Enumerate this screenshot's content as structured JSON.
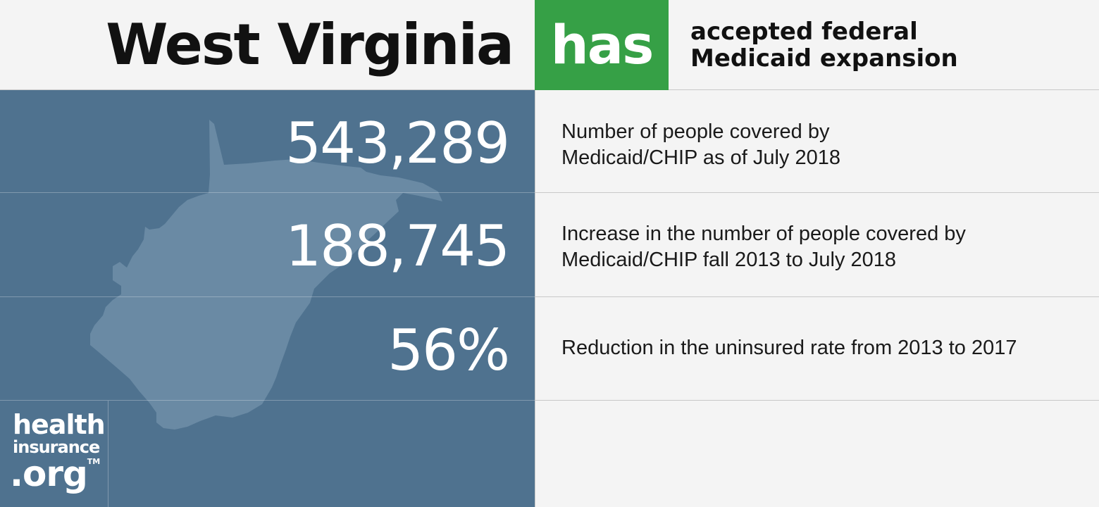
{
  "header": {
    "state_name": "West Virginia",
    "status": "has",
    "status_color": "#36a046",
    "description_line1": "accepted federal",
    "description_line2": "Medicaid expansion"
  },
  "stats": [
    {
      "value": "543,289",
      "label_line1": "Number of people covered by",
      "label_line2": "Medicaid/CHIP as of July 2018"
    },
    {
      "value": "188,745",
      "label_line1": "Increase in the number of people covered by",
      "label_line2": "Medicaid/CHIP fall 2013 to July 2018"
    },
    {
      "value": "56%",
      "label_line1": "Reduction in the uninsured rate from 2013 to 2017",
      "label_line2": ""
    }
  ],
  "logo": {
    "line1": "health",
    "line2": "insurance",
    "line3": ".org",
    "trademark": "TM"
  },
  "colors": {
    "panel": "#4f728f",
    "map": "#6a8aa4",
    "background": "#f4f4f4"
  },
  "icons": {
    "map": "west-virginia-map-icon"
  }
}
